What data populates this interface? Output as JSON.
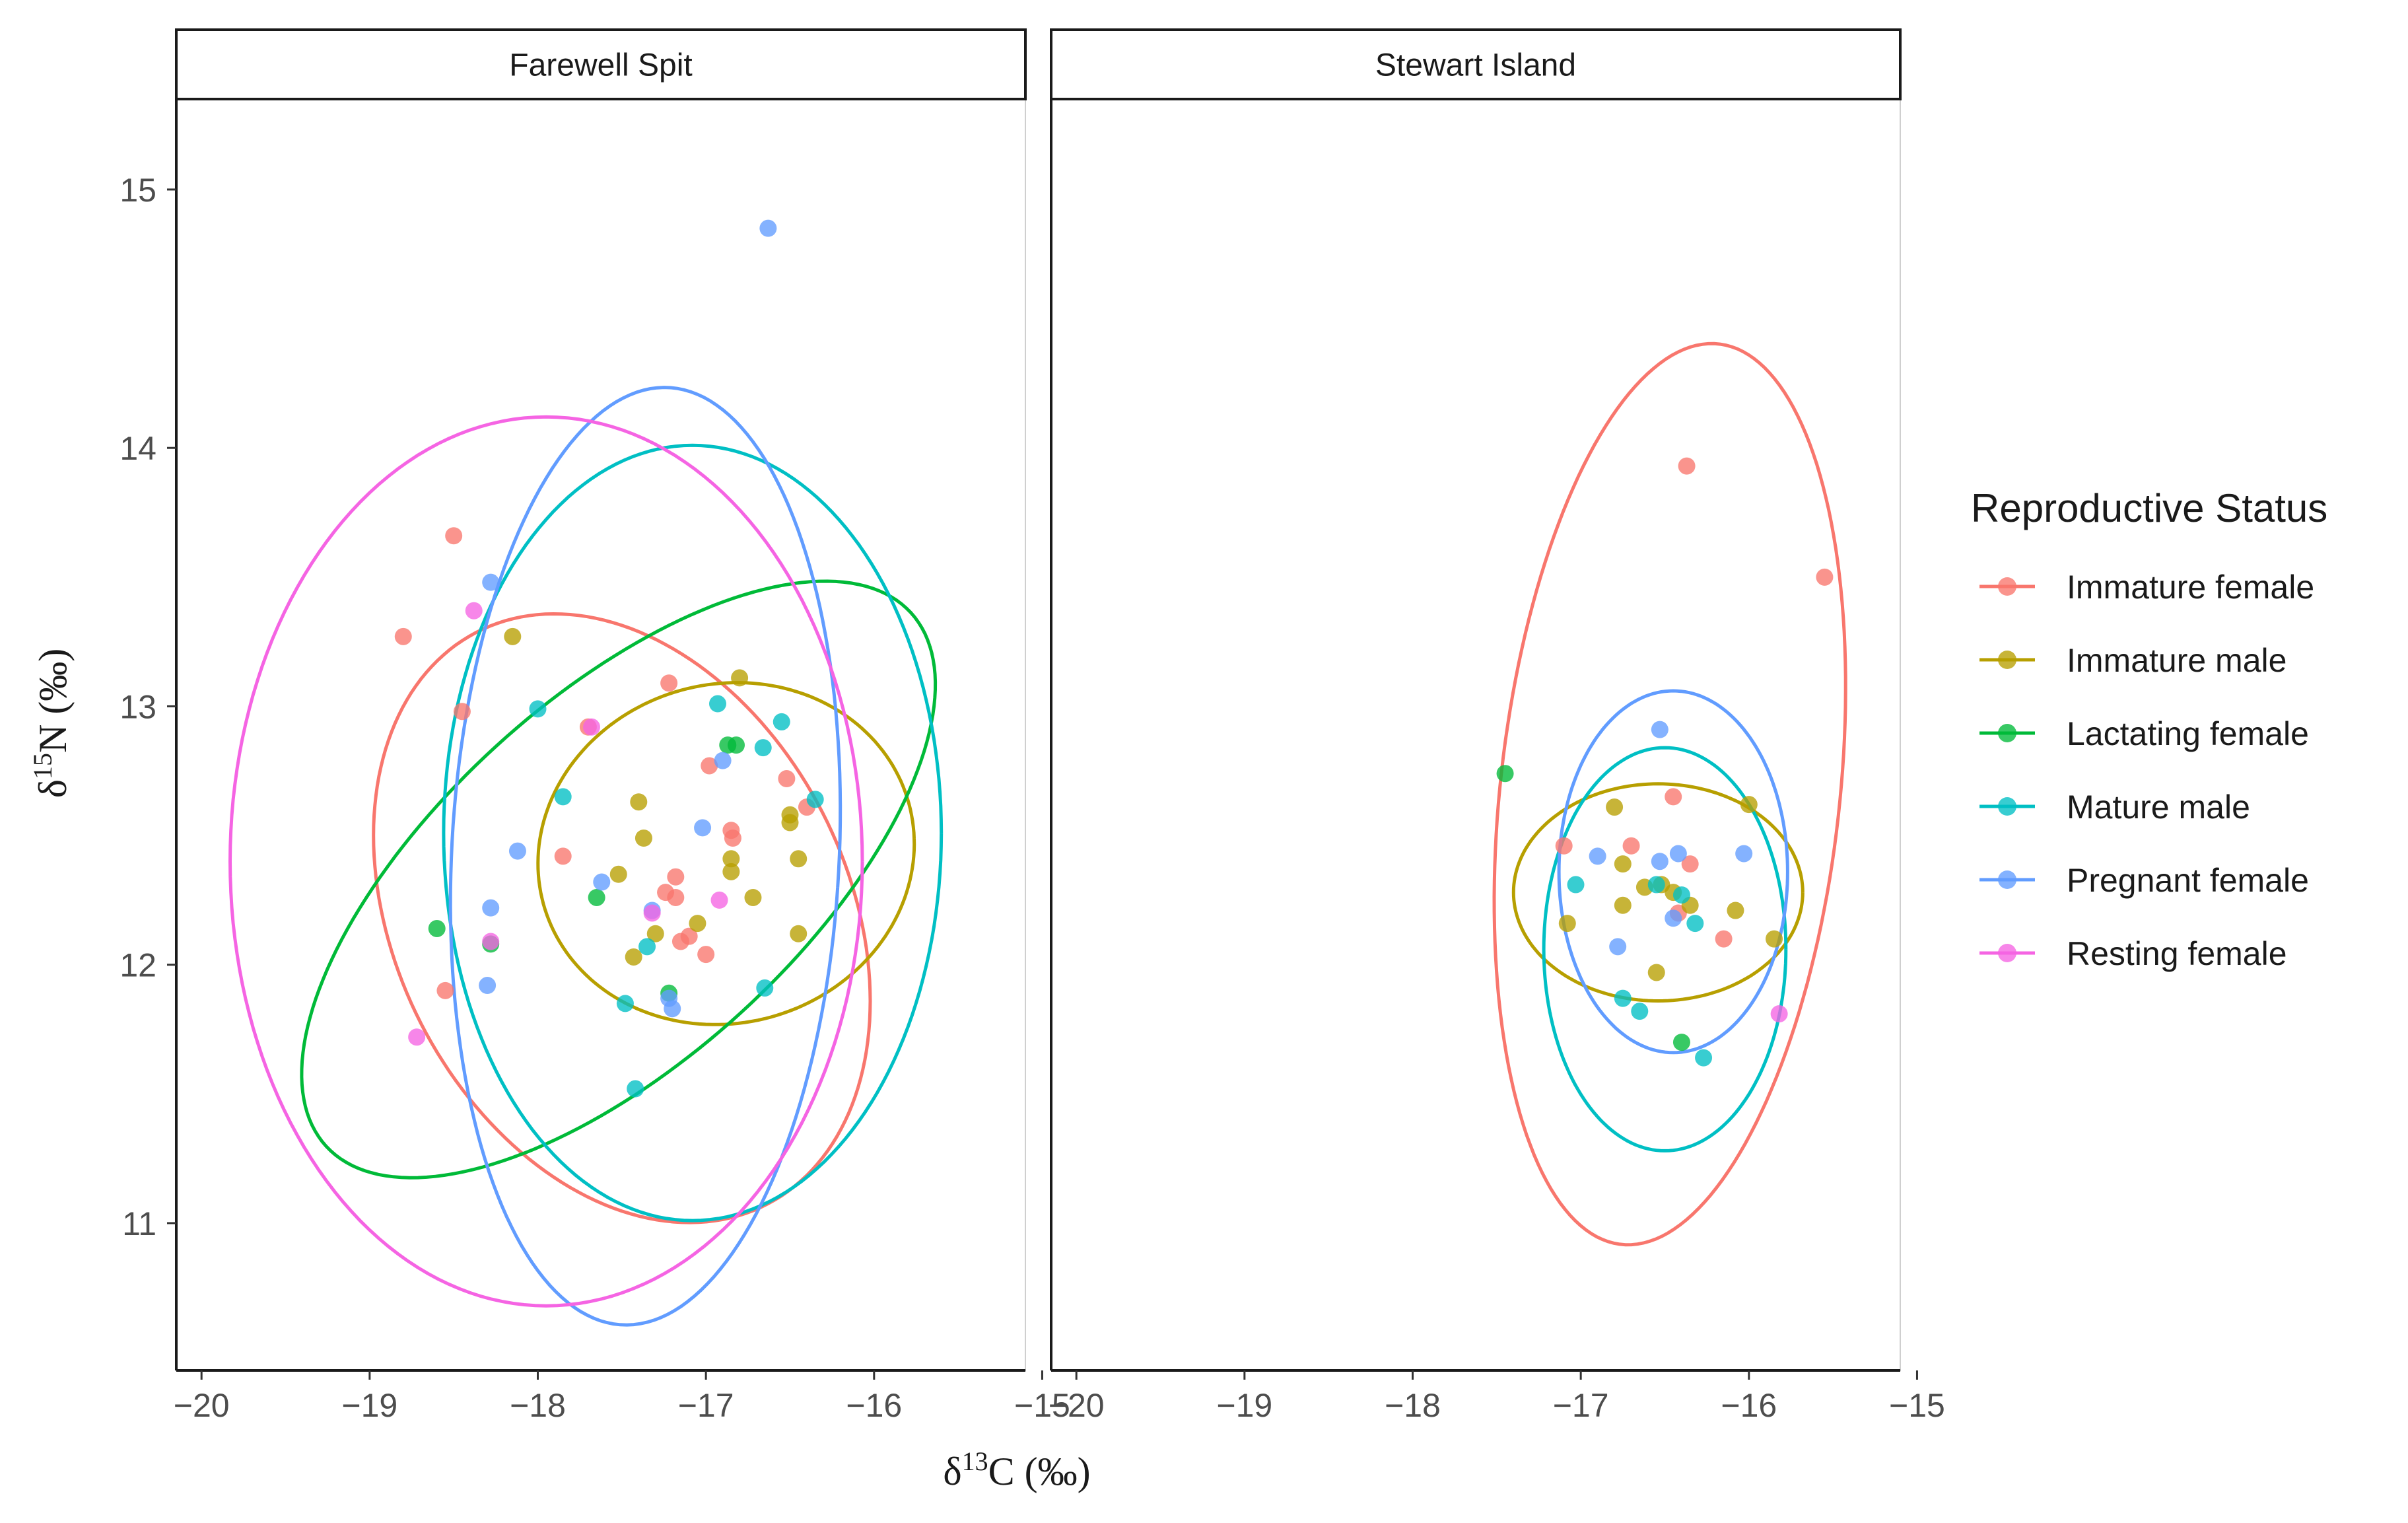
{
  "chart_data": {
    "type": "scatter",
    "xlabel": "δ13C (‰)",
    "ylabel": "δ15N (‰)",
    "xlim": [
      -20.15,
      -15.1
    ],
    "ylim": [
      10.43,
      15.35
    ],
    "xticks": [
      -20,
      -19,
      -18,
      -17,
      -16,
      -15
    ],
    "yticks": [
      11,
      12,
      13,
      14,
      15
    ],
    "xtick_labels": [
      "−20",
      "−19",
      "−18",
      "−17",
      "−16",
      "−15"
    ],
    "ytick_labels": [
      "11",
      "12",
      "13",
      "14",
      "15"
    ],
    "legend": {
      "title": "Reproductive Status",
      "position": "right"
    },
    "groups": [
      {
        "name": "Immature female",
        "color": "#F8766D"
      },
      {
        "name": "Immature male",
        "color": "#B79F00"
      },
      {
        "name": "Lactating female",
        "color": "#00BA38"
      },
      {
        "name": "Mature male",
        "color": "#00BFC4"
      },
      {
        "name": "Pregnant female",
        "color": "#619CFF"
      },
      {
        "name": "Resting female",
        "color": "#F564E3"
      }
    ],
    "panels": [
      {
        "title": "Farewell Spit",
        "points": {
          "Immature female": [
            [
              -18.5,
              13.66
            ],
            [
              -18.8,
              13.27
            ],
            [
              -18.45,
              12.98
            ],
            [
              -17.85,
              12.42
            ],
            [
              -17.7,
              12.92
            ],
            [
              -17.22,
              13.09
            ],
            [
              -16.98,
              12.77
            ],
            [
              -16.85,
              12.52
            ],
            [
              -16.84,
              12.49
            ],
            [
              -16.52,
              12.72
            ],
            [
              -16.4,
              12.61
            ],
            [
              -17.24,
              12.28
            ],
            [
              -17.18,
              12.34
            ],
            [
              -17.18,
              12.26
            ],
            [
              -17.15,
              12.09
            ],
            [
              -17.1,
              12.11
            ],
            [
              -17.0,
              12.04
            ],
            [
              -18.55,
              11.9
            ]
          ],
          "Immature male": [
            [
              -18.15,
              13.27
            ],
            [
              -17.4,
              12.63
            ],
            [
              -17.37,
              12.49
            ],
            [
              -17.52,
              12.35
            ],
            [
              -17.3,
              12.12
            ],
            [
              -17.43,
              12.03
            ],
            [
              -17.05,
              12.16
            ],
            [
              -16.8,
              13.11
            ],
            [
              -16.85,
              12.41
            ],
            [
              -16.85,
              12.36
            ],
            [
              -16.72,
              12.26
            ],
            [
              -16.5,
              12.58
            ],
            [
              -16.5,
              12.55
            ],
            [
              -16.45,
              12.41
            ],
            [
              -16.45,
              12.12
            ]
          ],
          "Lactating female": [
            [
              -18.6,
              12.14
            ],
            [
              -18.28,
              12.08
            ],
            [
              -17.65,
              12.26
            ],
            [
              -16.87,
              12.85
            ],
            [
              -16.82,
              12.85
            ],
            [
              -17.22,
              11.89
            ]
          ],
          "Mature male": [
            [
              -18.0,
              12.99
            ],
            [
              -17.85,
              12.65
            ],
            [
              -17.35,
              12.07
            ],
            [
              -17.48,
              11.85
            ],
            [
              -17.42,
              11.52
            ],
            [
              -16.93,
              13.01
            ],
            [
              -16.66,
              12.84
            ],
            [
              -16.55,
              12.94
            ],
            [
              -16.35,
              12.64
            ],
            [
              -16.65,
              11.91
            ]
          ],
          "Pregnant female": [
            [
              -16.63,
              14.85
            ],
            [
              -18.28,
              13.48
            ],
            [
              -18.12,
              12.44
            ],
            [
              -17.62,
              12.32
            ],
            [
              -17.32,
              12.21
            ],
            [
              -17.22,
              11.87
            ],
            [
              -17.2,
              11.83
            ],
            [
              -17.02,
              12.53
            ],
            [
              -16.9,
              12.79
            ],
            [
              -18.28,
              12.22
            ],
            [
              -18.3,
              11.92
            ]
          ],
          "Resting female": [
            [
              -18.38,
              13.37
            ],
            [
              -17.68,
              12.92
            ],
            [
              -17.32,
              12.2
            ],
            [
              -18.28,
              12.09
            ],
            [
              -16.92,
              12.25
            ],
            [
              -18.72,
              11.72
            ]
          ]
        },
        "ellipses": {
          "Immature female": {
            "center": [
              -17.5,
              12.18
            ],
            "semi_axes": [
              1.55,
              1.08
            ],
            "angle_deg": -25
          },
          "Immature male": {
            "center": [
              -16.88,
              12.43
            ],
            "semi_axes": [
              1.12,
              0.66
            ],
            "angle_deg": 3
          },
          "Lactating female": {
            "center": [
              -17.52,
              12.33
            ],
            "semi_axes": [
              2.06,
              0.8
            ],
            "angle_deg": 26
          },
          "Mature male": {
            "center": [
              -17.08,
              12.51
            ],
            "semi_axes": [
              1.48,
              1.5
            ],
            "angle_deg": 0
          },
          "Pregnant female": {
            "center": [
              -17.36,
              12.42
            ],
            "semi_axes": [
              1.15,
              1.82
            ],
            "angle_deg": -6
          },
          "Resting female": {
            "center": [
              -17.95,
              12.4
            ],
            "semi_axes": [
              1.88,
              1.72
            ],
            "angle_deg": 0
          }
        }
      },
      {
        "title": "Stewart Island",
        "points": {
          "Immature female": [
            [
              -16.37,
              13.93
            ],
            [
              -15.55,
              13.5
            ],
            [
              -16.45,
              12.65
            ],
            [
              -17.1,
              12.46
            ],
            [
              -16.7,
              12.46
            ],
            [
              -16.35,
              12.39
            ],
            [
              -16.15,
              12.1
            ],
            [
              -16.42,
              12.2
            ]
          ],
          "Immature male": [
            [
              -16.8,
              12.61
            ],
            [
              -16.0,
              12.62
            ],
            [
              -16.75,
              12.39
            ],
            [
              -16.62,
              12.3
            ],
            [
              -16.52,
              12.31
            ],
            [
              -16.45,
              12.28
            ],
            [
              -16.35,
              12.23
            ],
            [
              -16.75,
              12.23
            ],
            [
              -16.08,
              12.21
            ],
            [
              -17.08,
              12.16
            ],
            [
              -15.85,
              12.1
            ],
            [
              -16.55,
              11.97
            ]
          ],
          "Lactating female": [
            [
              -17.45,
              12.74
            ],
            [
              -16.4,
              11.7
            ]
          ],
          "Mature male": [
            [
              -17.03,
              12.31
            ],
            [
              -16.55,
              12.31
            ],
            [
              -16.4,
              12.27
            ],
            [
              -16.32,
              12.16
            ],
            [
              -16.75,
              11.87
            ],
            [
              -16.65,
              11.82
            ],
            [
              -16.27,
              11.64
            ]
          ],
          "Pregnant female": [
            [
              -16.53,
              12.91
            ],
            [
              -16.9,
              12.42
            ],
            [
              -16.42,
              12.43
            ],
            [
              -16.53,
              12.4
            ],
            [
              -16.03,
              12.43
            ],
            [
              -16.45,
              12.18
            ],
            [
              -16.78,
              12.07
            ]
          ],
          "Resting female": [
            [
              -15.82,
              11.81
            ]
          ]
        },
        "ellipses": {
          "Immature female": {
            "center": [
              -16.47,
              12.66
            ],
            "semi_axes": [
              1.0,
              1.77
            ],
            "angle_deg": -12
          },
          "Immature male": {
            "center": [
              -16.54,
              12.28
            ],
            "semi_axes": [
              0.86,
              0.42
            ],
            "angle_deg": 0
          },
          "Mature male": {
            "center": [
              -16.5,
              12.06
            ],
            "semi_axes": [
              0.72,
              0.78
            ],
            "angle_deg": 0
          },
          "Pregnant female": {
            "center": [
              -16.45,
              12.36
            ],
            "semi_axes": [
              0.68,
              0.7
            ],
            "angle_deg": 0
          }
        }
      }
    ]
  }
}
